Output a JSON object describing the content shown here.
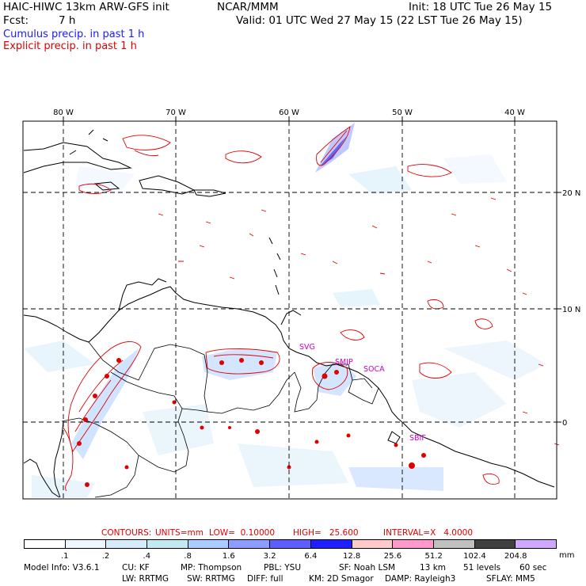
{
  "header": {
    "model_title": "HAIC-HIWC 13km ARW-GFS init",
    "center": "NCAR/MMM",
    "init": "Init: 18 UTC Tue 26 May 15",
    "fcst_label": "Fcst:",
    "fcst_value": "7 h",
    "valid": "Valid: 01 UTC Wed 27 May 15 (22 LST Tue 26 May 15)"
  },
  "legend": {
    "cumulus": "Cumulus precip. in past 1 h",
    "explicit": "Explicit precip. in past 1 h"
  },
  "map": {
    "lon_labels": [
      "80 W",
      "70 W",
      "60 W",
      "50 W",
      "40 W"
    ],
    "lat_labels": [
      "20 N",
      "10 N",
      "0"
    ],
    "stations": [
      "SVG",
      "SMJP",
      "SOCA",
      "SBIF"
    ],
    "colors": {
      "border": "#000000",
      "contour": "#e00000",
      "station": "#cc00cc"
    }
  },
  "contours_line": {
    "contours": "CONTOURS:",
    "units": "UNITS=mm",
    "low": "LOW=  0.10000",
    "high": "HIGH=   25.600",
    "interval": "INTERVAL=X   4.0000"
  },
  "colorbar": {
    "units": "mm",
    "ticks": [
      ".1",
      ".2",
      ".4",
      ".8",
      "1.6",
      "3.2",
      "6.4",
      "12.8",
      "25.6",
      "51.2",
      "102.4",
      "204.8"
    ],
    "colors": [
      "#ffffff",
      "#eef6ff",
      "#d6ecfa",
      "#c2e8f2",
      "#aaccff",
      "#8c9cff",
      "#5e5eff",
      "#1f1fff",
      "#ffcaca",
      "#ff99cc",
      "#c0c0c0",
      "#404040",
      "#d0a8ff"
    ]
  },
  "model_info": {
    "line1": [
      "Model Info: V3.6.1",
      "CU: KF",
      "MP: Thompson",
      "PBL: YSU",
      "SF: Noah LSM",
      "13 km",
      "51 levels",
      "60 sec"
    ],
    "line2": [
      "LW: RRTMG",
      "SW: RRTMG",
      "DIFF: full",
      "KM: 2D Smagor",
      "DAMP: Rayleigh3",
      "SFLAY: MM5"
    ]
  }
}
